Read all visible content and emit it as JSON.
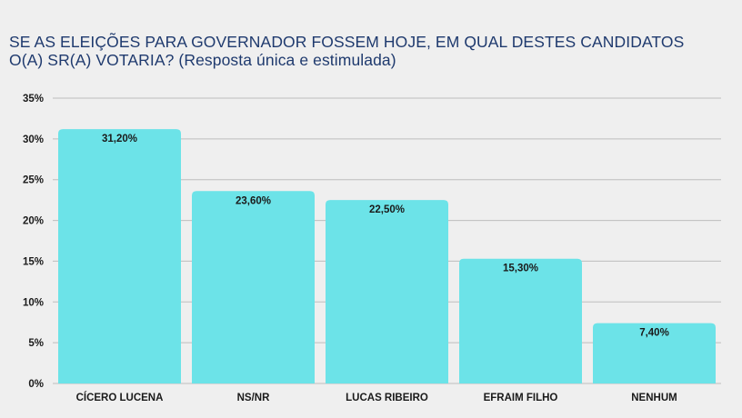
{
  "title_line1": "SE AS ELEIÇÕES PARA GOVERNADOR FOSSEM HOJE, EM QUAL DESTES CANDIDATOS",
  "title_line2": "O(A) SR(A) VOTARIA? (Resposta única e estimulada)",
  "bar_color": "#6ce3e8",
  "grid_color": "#bdbdbd",
  "chart_data": {
    "type": "bar",
    "title": "SE AS ELEIÇÕES PARA GOVERNADOR FOSSEM HOJE, EM QUAL DESTES CANDIDATOS O(A) SR(A) VOTARIA? (Resposta única e estimulada)",
    "categories": [
      "CÍCERO LUCENA",
      "NS/NR",
      "LUCAS RIBEIRO",
      "EFRAIM FILHO",
      "NENHUM"
    ],
    "values": [
      31.2,
      23.6,
      22.5,
      15.3,
      7.4
    ],
    "data_labels": [
      "31,20%",
      "23,60%",
      "22,50%",
      "15,30%",
      "7,40%"
    ],
    "yticks": [
      0,
      5,
      10,
      15,
      20,
      25,
      30,
      35
    ],
    "ytick_labels": [
      "0%",
      "5%",
      "10%",
      "15%",
      "20%",
      "25%",
      "30%",
      "35%"
    ],
    "ylim": [
      0,
      35
    ],
    "xlabel": "",
    "ylabel": "",
    "grid": true,
    "legend": "none"
  }
}
